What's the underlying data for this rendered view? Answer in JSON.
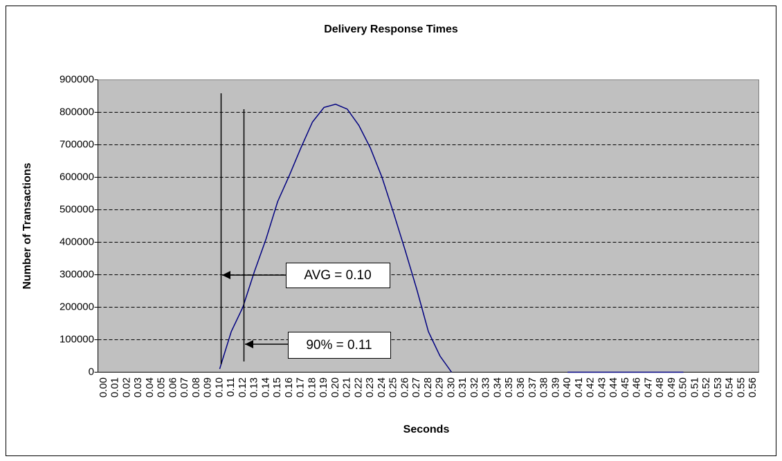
{
  "chart_data": {
    "type": "line",
    "title": "Delivery Response Times",
    "x_label": "Seconds",
    "y_label": "Number of Transactions",
    "categories": [
      "0.00",
      "0.01",
      "0.02",
      "0.03",
      "0.04",
      "0.05",
      "0.06",
      "0.07",
      "0.08",
      "0.09",
      "0.10",
      "0.11",
      "0.12",
      "0.13",
      "0.14",
      "0.15",
      "0.16",
      "0.17",
      "0.18",
      "0.19",
      "0.20",
      "0.21",
      "0.22",
      "0.23",
      "0.24",
      "0.25",
      "0.26",
      "0.27",
      "0.28",
      "0.29",
      "0.30",
      "0.31",
      "0.32",
      "0.33",
      "0.34",
      "0.35",
      "0.36",
      "0.37",
      "0.38",
      "0.39",
      "0.40",
      "0.41",
      "0.42",
      "0.43",
      "0.44",
      "0.45",
      "0.46",
      "0.47",
      "0.48",
      "0.49",
      "0.50",
      "0.51",
      "0.52",
      "0.53",
      "0.54",
      "0.55",
      "0.56"
    ],
    "series": [
      {
        "name": "Transactions",
        "color": "#000080",
        "values": [
          null,
          null,
          null,
          null,
          null,
          null,
          null,
          null,
          null,
          null,
          10000,
          125000,
          200000,
          310000,
          410000,
          525000,
          605000,
          690000,
          770000,
          815000,
          825000,
          810000,
          760000,
          690000,
          600000,
          490000,
          375000,
          255000,
          125000,
          50000,
          0,
          null,
          null,
          null,
          null,
          null,
          null,
          null,
          null,
          null,
          0,
          0,
          0,
          0,
          0,
          0,
          0,
          0,
          0,
          0,
          0,
          null,
          null,
          null,
          null,
          null,
          null
        ]
      }
    ],
    "ylim": [
      0,
      900000
    ],
    "yticks": [
      0,
      100000,
      200000,
      300000,
      400000,
      500000,
      600000,
      700000,
      800000,
      900000
    ],
    "grid": true,
    "annotations": [
      {
        "text": "AVG = 0.10"
      },
      {
        "text": "90% = 0.11"
      }
    ]
  }
}
